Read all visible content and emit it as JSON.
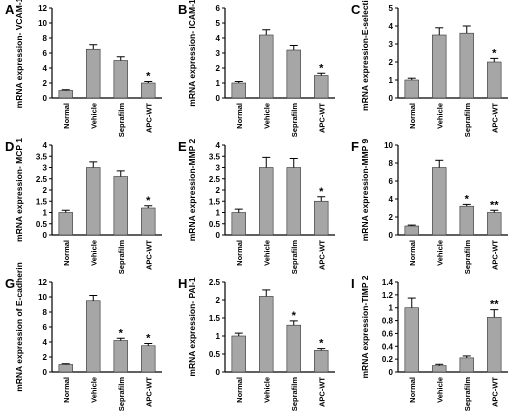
{
  "chart_data": [
    {
      "panel": "A",
      "type": "bar",
      "ylabel": "mRNA expression- VCAM-1",
      "categories": [
        "Normal",
        "Vehicle",
        "Seprafilm",
        "APC-WT"
      ],
      "values": [
        1.0,
        6.5,
        5.0,
        2.0
      ],
      "errors": [
        0.1,
        0.6,
        0.5,
        0.2
      ],
      "annotations": [
        "",
        "",
        "",
        "*"
      ],
      "ylim": [
        0,
        12
      ],
      "yticks": [
        0,
        2,
        4,
        6,
        8,
        10,
        12
      ]
    },
    {
      "panel": "B",
      "type": "bar",
      "ylabel": "mRNA expression- ICAM-1",
      "categories": [
        "Normal",
        "Vehicle",
        "Seprafilm",
        "APC-WT"
      ],
      "values": [
        1.0,
        4.2,
        3.2,
        1.5
      ],
      "errors": [
        0.1,
        0.35,
        0.3,
        0.15
      ],
      "annotations": [
        "",
        "",
        "",
        "*"
      ],
      "ylim": [
        0,
        6
      ],
      "yticks": [
        0,
        1,
        2,
        3,
        4,
        5,
        6
      ]
    },
    {
      "panel": "C",
      "type": "bar",
      "ylabel": "mRNA expression-E-selectin",
      "categories": [
        "Normal",
        "Vehicle",
        "Seprafilm",
        "APC-WT"
      ],
      "values": [
        1.0,
        3.5,
        3.6,
        2.0
      ],
      "errors": [
        0.1,
        0.4,
        0.4,
        0.2
      ],
      "annotations": [
        "",
        "",
        "",
        "*"
      ],
      "ylim": [
        0,
        5
      ],
      "yticks": [
        0,
        1,
        2,
        3,
        4,
        5
      ]
    },
    {
      "panel": "D",
      "type": "bar",
      "ylabel": "mRNA expression- MCP 1",
      "categories": [
        "Normal",
        "Vehicle",
        "Seprafilm",
        "APC-WT"
      ],
      "values": [
        1.0,
        3.0,
        2.6,
        1.2
      ],
      "errors": [
        0.1,
        0.25,
        0.25,
        0.1
      ],
      "annotations": [
        "",
        "",
        "",
        "*"
      ],
      "ylim": [
        0,
        4
      ],
      "yticks": [
        0,
        0.5,
        1,
        1.5,
        2,
        2.5,
        3,
        3.5,
        4
      ]
    },
    {
      "panel": "E",
      "type": "bar",
      "ylabel": "mRNA expression-MMP 2",
      "categories": [
        "Normal",
        "Vehicle",
        "Seprafilm",
        "APC-WT"
      ],
      "values": [
        1.0,
        3.0,
        3.0,
        1.5
      ],
      "errors": [
        0.15,
        0.45,
        0.4,
        0.2
      ],
      "annotations": [
        "",
        "",
        "",
        "*"
      ],
      "ylim": [
        0,
        4
      ],
      "yticks": [
        0,
        0.5,
        1,
        1.5,
        2,
        2.5,
        3,
        3.5,
        4
      ]
    },
    {
      "panel": "F",
      "type": "bar",
      "ylabel": "mRNA expression-MMP 9",
      "categories": [
        "Normal",
        "Vehicle",
        "Seprafilm",
        "APC-WT"
      ],
      "values": [
        1.0,
        7.5,
        3.2,
        2.5
      ],
      "errors": [
        0.1,
        0.8,
        0.2,
        0.25
      ],
      "annotations": [
        "",
        "",
        "*",
        "**"
      ],
      "ylim": [
        0,
        10
      ],
      "yticks": [
        0,
        2,
        4,
        6,
        8,
        10
      ]
    },
    {
      "panel": "G",
      "type": "bar",
      "ylabel": "mRNA expression of E-cadherin",
      "categories": [
        "Normal",
        "Vehicle",
        "Seprafilm",
        "APC-WT"
      ],
      "values": [
        1.0,
        9.5,
        4.2,
        3.5
      ],
      "errors": [
        0.1,
        0.7,
        0.3,
        0.3
      ],
      "annotations": [
        "",
        "",
        "*",
        "*"
      ],
      "ylim": [
        0,
        12
      ],
      "yticks": [
        0,
        2,
        4,
        6,
        8,
        10,
        12
      ]
    },
    {
      "panel": "H",
      "type": "bar",
      "ylabel": "mRNA expression- PAI-1",
      "categories": [
        "Normal",
        "Vehicle",
        "Seprafilm",
        "APC-WT"
      ],
      "values": [
        1.0,
        2.1,
        1.3,
        0.6
      ],
      "errors": [
        0.08,
        0.18,
        0.12,
        0.05
      ],
      "annotations": [
        "",
        "",
        "*",
        "*"
      ],
      "ylim": [
        0,
        2.5
      ],
      "yticks": [
        0,
        0.5,
        1,
        1.5,
        2,
        2.5
      ]
    },
    {
      "panel": "I",
      "type": "bar",
      "ylabel": "mRNA expression-TIMP 2",
      "categories": [
        "Normal",
        "Vehicle",
        "Seprafilm",
        "APC-WT"
      ],
      "values": [
        1.0,
        0.1,
        0.22,
        0.85
      ],
      "errors": [
        0.15,
        0.02,
        0.03,
        0.12
      ],
      "annotations": [
        "",
        "",
        "",
        "**"
      ],
      "ylim": [
        0,
        1.4
      ],
      "yticks": [
        0,
        0.2,
        0.4,
        0.6,
        0.8,
        1,
        1.2,
        1.4
      ]
    }
  ],
  "style": {
    "bar_color": "#a6a6a6",
    "bar_stroke": "#333333",
    "axis_color": "#000000"
  }
}
